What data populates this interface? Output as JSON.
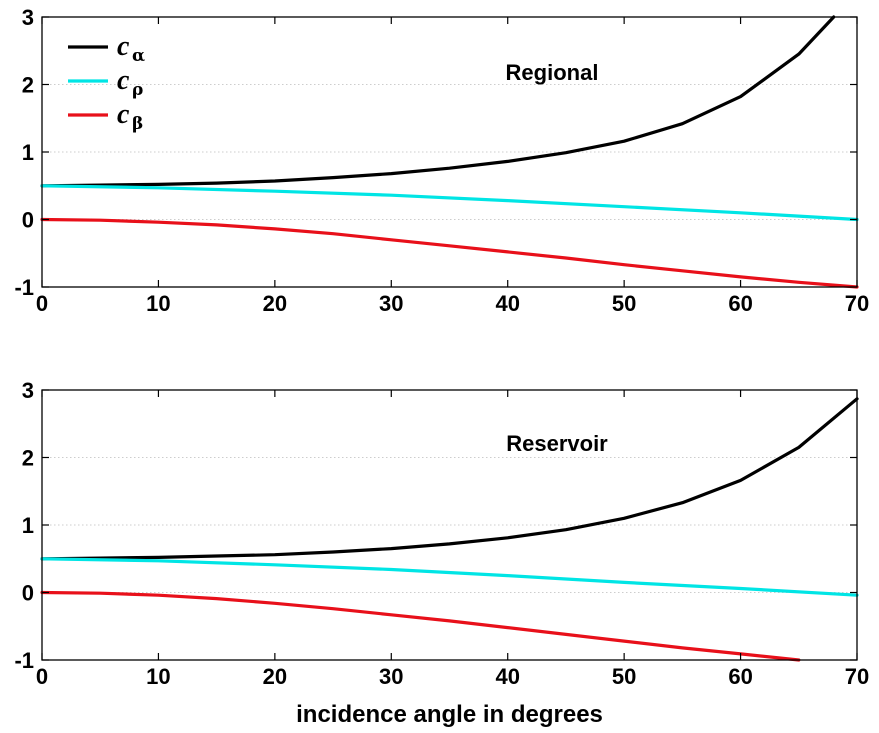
{
  "chart_data": [
    {
      "type": "line",
      "panel_label": "Regional",
      "xlabel": "",
      "ylabel": "",
      "xlim": [
        0,
        70
      ],
      "ylim": [
        -1,
        3
      ],
      "xticks": [
        0,
        10,
        20,
        30,
        40,
        50,
        60,
        70
      ],
      "yticks": [
        -1,
        0,
        1,
        2,
        3
      ],
      "grid": "horizontal dotted",
      "legend": {
        "placement": "top-left",
        "entries": [
          {
            "symbol": "c",
            "subscript": "α",
            "color": "#000000"
          },
          {
            "symbol": "c",
            "subscript": "ρ",
            "color": "#00e5e5"
          },
          {
            "symbol": "c",
            "subscript": "β",
            "color": "#e8101a"
          }
        ]
      },
      "series": [
        {
          "key": "alpha",
          "color": "#000000",
          "x": [
            0,
            5,
            10,
            15,
            20,
            25,
            30,
            35,
            40,
            45,
            50,
            55,
            60,
            65,
            68
          ],
          "y": [
            0.5,
            0.51,
            0.52,
            0.54,
            0.57,
            0.62,
            0.68,
            0.76,
            0.86,
            0.99,
            1.16,
            1.42,
            1.82,
            2.45,
            3.0
          ]
        },
        {
          "key": "rho",
          "color": "#00e5e5",
          "x": [
            0,
            10,
            20,
            30,
            40,
            50,
            60,
            70
          ],
          "y": [
            0.5,
            0.47,
            0.42,
            0.36,
            0.28,
            0.19,
            0.1,
            0.0
          ]
        },
        {
          "key": "beta",
          "color": "#e8101a",
          "x": [
            0,
            5,
            10,
            15,
            20,
            25,
            30,
            35,
            40,
            45,
            50,
            55,
            60,
            65,
            70
          ],
          "y": [
            0.0,
            -0.01,
            -0.04,
            -0.08,
            -0.14,
            -0.21,
            -0.3,
            -0.39,
            -0.48,
            -0.57,
            -0.67,
            -0.76,
            -0.85,
            -0.93,
            -1.0
          ]
        }
      ]
    },
    {
      "type": "line",
      "panel_label": "Reservoir",
      "xlabel": "incidence angle in degrees",
      "ylabel": "",
      "xlim": [
        0,
        70
      ],
      "ylim": [
        -1,
        3
      ],
      "xticks": [
        0,
        10,
        20,
        30,
        40,
        50,
        60,
        70
      ],
      "yticks": [
        -1,
        0,
        1,
        2,
        3
      ],
      "grid": "horizontal dotted",
      "series": [
        {
          "key": "alpha",
          "color": "#000000",
          "x": [
            0,
            5,
            10,
            15,
            20,
            25,
            30,
            35,
            40,
            45,
            50,
            55,
            60,
            65,
            70
          ],
          "y": [
            0.5,
            0.51,
            0.52,
            0.54,
            0.56,
            0.6,
            0.65,
            0.72,
            0.81,
            0.93,
            1.1,
            1.33,
            1.66,
            2.15,
            2.87
          ]
        },
        {
          "key": "rho",
          "color": "#00e5e5",
          "x": [
            0,
            10,
            20,
            30,
            40,
            50,
            60,
            70
          ],
          "y": [
            0.5,
            0.47,
            0.41,
            0.34,
            0.25,
            0.15,
            0.06,
            -0.04
          ]
        },
        {
          "key": "beta",
          "color": "#e8101a",
          "x": [
            0,
            5,
            10,
            15,
            20,
            25,
            30,
            35,
            40,
            45,
            50,
            55,
            60,
            65
          ],
          "y": [
            0.0,
            -0.01,
            -0.04,
            -0.09,
            -0.16,
            -0.24,
            -0.33,
            -0.42,
            -0.52,
            -0.62,
            -0.72,
            -0.82,
            -0.91,
            -1.0
          ]
        }
      ]
    }
  ]
}
